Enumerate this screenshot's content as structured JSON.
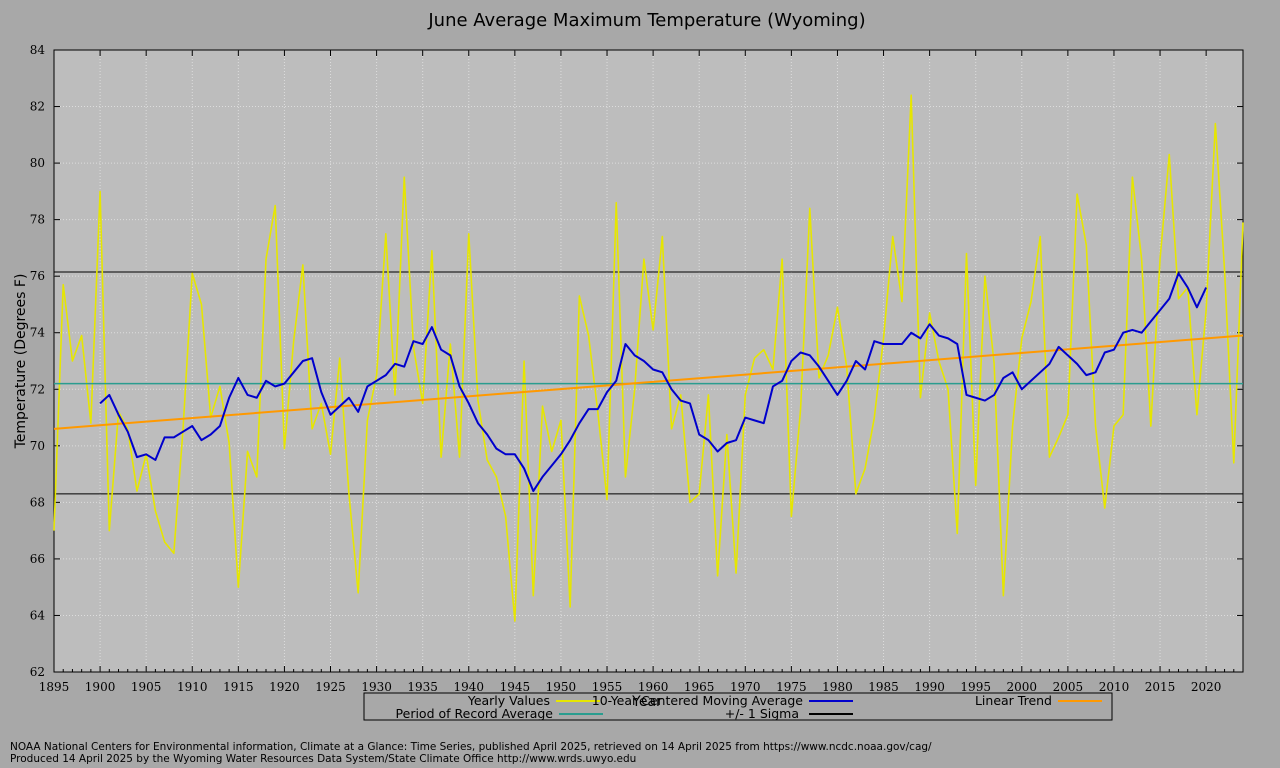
{
  "chart_data": {
    "type": "line",
    "title": "June Average Maximum Temperature (Wyoming)",
    "xlabel": "Year",
    "ylabel": "Temperature (Degrees F)",
    "xlim": [
      1895,
      2024
    ],
    "ylim": [
      62,
      84
    ],
    "x_ticks": [
      1895,
      1900,
      1905,
      1910,
      1915,
      1920,
      1925,
      1930,
      1935,
      1940,
      1945,
      1950,
      1955,
      1960,
      1965,
      1970,
      1975,
      1980,
      1985,
      1990,
      1995,
      2000,
      2005,
      2010,
      2015,
      2020
    ],
    "y_ticks": [
      62,
      64,
      66,
      68,
      70,
      72,
      74,
      76,
      78,
      80,
      82,
      84
    ],
    "grid": true,
    "legend_position": "bottom",
    "series": [
      {
        "name": "Yearly Values",
        "color": "#e6e600",
        "x": [
          1895,
          1896,
          1897,
          1898,
          1899,
          1900,
          1901,
          1902,
          1903,
          1904,
          1905,
          1906,
          1907,
          1908,
          1909,
          1910,
          1911,
          1912,
          1913,
          1914,
          1915,
          1916,
          1917,
          1918,
          1919,
          1920,
          1921,
          1922,
          1923,
          1924,
          1925,
          1926,
          1927,
          1928,
          1929,
          1930,
          1931,
          1932,
          1933,
          1934,
          1935,
          1936,
          1937,
          1938,
          1939,
          1940,
          1941,
          1942,
          1943,
          1944,
          1945,
          1946,
          1947,
          1948,
          1949,
          1950,
          1951,
          1952,
          1953,
          1954,
          1955,
          1956,
          1957,
          1958,
          1959,
          1960,
          1961,
          1962,
          1963,
          1964,
          1965,
          1966,
          1967,
          1968,
          1969,
          1970,
          1971,
          1972,
          1973,
          1974,
          1975,
          1976,
          1977,
          1978,
          1979,
          1980,
          1981,
          1982,
          1983,
          1984,
          1985,
          1986,
          1987,
          1988,
          1989,
          1990,
          1991,
          1992,
          1993,
          1994,
          1995,
          1996,
          1997,
          1998,
          1999,
          2000,
          2001,
          2002,
          2003,
          2004,
          2005,
          2006,
          2007,
          2008,
          2009,
          2010,
          2011,
          2012,
          2013,
          2014,
          2015,
          2016,
          2017,
          2018,
          2019,
          2020,
          2021,
          2022,
          2023,
          2024
        ],
        "values": [
          67.0,
          75.7,
          73.0,
          73.9,
          70.8,
          79.0,
          67.0,
          71.2,
          70.6,
          68.4,
          69.7,
          67.7,
          66.6,
          66.2,
          70.6,
          76.1,
          75.0,
          71.0,
          72.1,
          70.1,
          65.0,
          69.8,
          68.9,
          76.6,
          78.5,
          69.9,
          73.7,
          76.4,
          70.6,
          71.5,
          69.7,
          73.1,
          68.3,
          64.8,
          70.9,
          72.5,
          77.5,
          71.8,
          79.5,
          73.5,
          71.5,
          76.9,
          69.6,
          73.6,
          69.6,
          77.5,
          71.6,
          69.5,
          68.9,
          67.5,
          63.8,
          73.0,
          64.7,
          71.4,
          69.8,
          70.9,
          64.3,
          75.3,
          73.9,
          71.2,
          68.1,
          78.6,
          68.9,
          72.0,
          76.6,
          74.1,
          77.4,
          70.6,
          71.8,
          68.0,
          68.3,
          71.8,
          65.4,
          70.4,
          65.5,
          71.8,
          73.1,
          73.4,
          72.7,
          76.6,
          67.5,
          71.3,
          78.4,
          72.4,
          73.2,
          74.9,
          72.8,
          68.3,
          69.2,
          71.0,
          73.8,
          77.4,
          75.1,
          82.4,
          71.7,
          74.7,
          73.0,
          72.0,
          66.9,
          76.8,
          68.6,
          76.0,
          72.9,
          64.7,
          70.7,
          73.8,
          75.1,
          77.4,
          69.6,
          70.3,
          71.1,
          78.9,
          77.1,
          70.7,
          67.8,
          70.7,
          71.1,
          79.5,
          76.6,
          70.7,
          76.6,
          80.3,
          75.2,
          75.6,
          71.1,
          74.8,
          81.4,
          76.2,
          69.4,
          77.9
        ]
      },
      {
        "name": "10-Year Centered Moving Average",
        "color": "#0000cc",
        "x": [
          1900,
          1901,
          1902,
          1903,
          1904,
          1905,
          1906,
          1907,
          1908,
          1909,
          1910,
          1911,
          1912,
          1913,
          1914,
          1915,
          1916,
          1917,
          1918,
          1919,
          1920,
          1921,
          1922,
          1923,
          1924,
          1925,
          1926,
          1927,
          1928,
          1929,
          1930,
          1931,
          1932,
          1933,
          1934,
          1935,
          1936,
          1937,
          1938,
          1939,
          1940,
          1941,
          1942,
          1943,
          1944,
          1945,
          1946,
          1947,
          1948,
          1949,
          1950,
          1951,
          1952,
          1953,
          1954,
          1955,
          1956,
          1957,
          1958,
          1959,
          1960,
          1961,
          1962,
          1963,
          1964,
          1965,
          1966,
          1967,
          1968,
          1969,
          1970,
          1971,
          1972,
          1973,
          1974,
          1975,
          1976,
          1977,
          1978,
          1979,
          1980,
          1981,
          1982,
          1983,
          1984,
          1985,
          1986,
          1987,
          1988,
          1989,
          1990,
          1991,
          1992,
          1993,
          1994,
          1995,
          1996,
          1997,
          1998,
          1999,
          2000,
          2001,
          2002,
          2003,
          2004,
          2005,
          2006,
          2007,
          2008,
          2009,
          2010,
          2011,
          2012,
          2013,
          2014,
          2015,
          2016,
          2017,
          2018,
          2019,
          2020
        ],
        "values": [
          71.5,
          71.8,
          71.1,
          70.5,
          69.6,
          69.7,
          69.5,
          70.3,
          70.3,
          70.5,
          70.7,
          70.2,
          70.4,
          70.7,
          71.7,
          72.4,
          71.8,
          71.7,
          72.3,
          72.1,
          72.2,
          72.6,
          73.0,
          73.1,
          71.9,
          71.1,
          71.4,
          71.7,
          71.2,
          72.1,
          72.3,
          72.5,
          72.9,
          72.8,
          73.7,
          73.6,
          74.2,
          73.4,
          73.2,
          72.1,
          71.5,
          70.8,
          70.4,
          69.9,
          69.7,
          69.7,
          69.2,
          68.4,
          68.9,
          69.3,
          69.7,
          70.2,
          70.8,
          71.3,
          71.3,
          71.9,
          72.3,
          73.6,
          73.2,
          73.0,
          72.7,
          72.6,
          72.0,
          71.6,
          71.5,
          70.4,
          70.2,
          69.8,
          70.1,
          70.2,
          71.0,
          70.9,
          70.8,
          72.1,
          72.3,
          73.0,
          73.3,
          73.2,
          72.8,
          72.3,
          71.8,
          72.3,
          73.0,
          72.7,
          73.7,
          73.6,
          73.6,
          73.6,
          74.0,
          73.8,
          74.3,
          73.9,
          73.8,
          73.6,
          71.8,
          71.7,
          71.6,
          71.8,
          72.4,
          72.6,
          72.0,
          72.3,
          72.6,
          72.9,
          73.5,
          73.2,
          72.9,
          72.5,
          72.6,
          73.3,
          73.4,
          74.0,
          74.1,
          74.0,
          74.4,
          74.8,
          75.2,
          76.1,
          75.6,
          74.9,
          75.6
        ]
      },
      {
        "name": "Linear Trend",
        "color": "#ff9900",
        "x": [
          1895,
          2024
        ],
        "values": [
          70.6,
          73.9
        ]
      },
      {
        "name": "Period of Record Average",
        "color": "#2a9d8f",
        "x": [
          1895,
          2024
        ],
        "values": [
          72.2,
          72.2
        ]
      },
      {
        "name": "+/- 1 Sigma",
        "color": "#000000",
        "bands": [
          76.15,
          68.3
        ]
      }
    ]
  },
  "credits": {
    "line1": "NOAA National Centers for Environmental information, Climate at a Glance: Time Series, published April 2025, retrieved on 14 April 2025 from https://www.ncdc.noaa.gov/cag/",
    "line2": "Produced 14 April 2025 by the Wyoming Water Resources Data System/State Climate Office http://www.wrds.uwyo.edu"
  }
}
